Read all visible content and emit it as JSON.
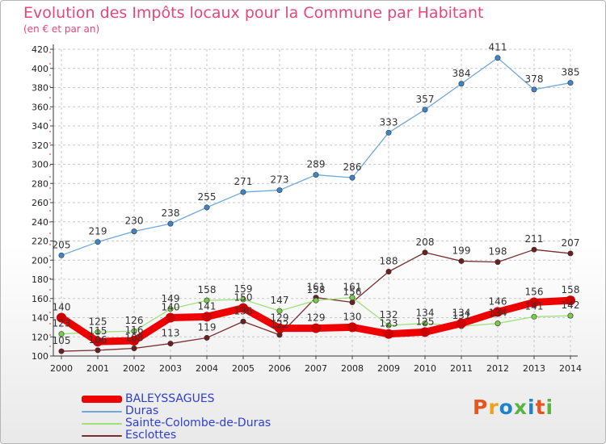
{
  "header": {
    "title": "Evolution des Impôts locaux pour la Commune par Habitant",
    "subtitle": "(en € et par an)"
  },
  "logo": {
    "text": "Proxiti",
    "colors": [
      "#e8541e",
      "#f0a21c",
      "#1e83c8",
      "#5ab445",
      "#1e83c8",
      "#e8541e",
      "#5ab445"
    ]
  },
  "chart_data": {
    "type": "line",
    "title": "Evolution des Impôts locaux pour la Commune par Habitant",
    "subtitle": "(en € et par an)",
    "x": [
      "2000",
      "2001",
      "2002",
      "2003",
      "2004",
      "2005",
      "2006",
      "2007",
      "2008",
      "2009",
      "2010",
      "2011",
      "2012",
      "2013",
      "2014"
    ],
    "ylim": [
      100,
      420
    ],
    "yticks": [
      100,
      120,
      140,
      160,
      180,
      200,
      220,
      240,
      260,
      280,
      300,
      320,
      340,
      360,
      380,
      400,
      420
    ],
    "grid": true,
    "legend_position": "bottom-left",
    "series": [
      {
        "name": "BALEYSSAGUES",
        "color": "#ee0000",
        "point_color": "#cc0000",
        "line_width": 9,
        "values": [
          140,
          115,
          116,
          140,
          141,
          150,
          129,
          129,
          130,
          123,
          125,
          134,
          146,
          156,
          158
        ]
      },
      {
        "name": "Duras",
        "color": "#6fa8dc",
        "point_color": "#3d85c6",
        "line_width": 1.3,
        "values": [
          205,
          219,
          230,
          238,
          255,
          271,
          273,
          289,
          286,
          333,
          357,
          384,
          411,
          378,
          385
        ]
      },
      {
        "name": "Sainte-Colombe-de-Duras",
        "color": "#9ee07a",
        "point_color": "#7acb4a",
        "line_width": 1.3,
        "values": [
          123,
          125,
          126,
          149,
          158,
          159,
          147,
          158,
          161,
          132,
          134,
          131,
          134,
          141,
          142
        ]
      },
      {
        "name": "Esclottes",
        "color": "#7a2e2e",
        "point_color": "#6b1f1f",
        "line_width": 1.3,
        "values": [
          105,
          106,
          108,
          113,
          119,
          136,
          122,
          161,
          156,
          188,
          208,
          199,
          198,
          211,
          207
        ]
      }
    ]
  }
}
